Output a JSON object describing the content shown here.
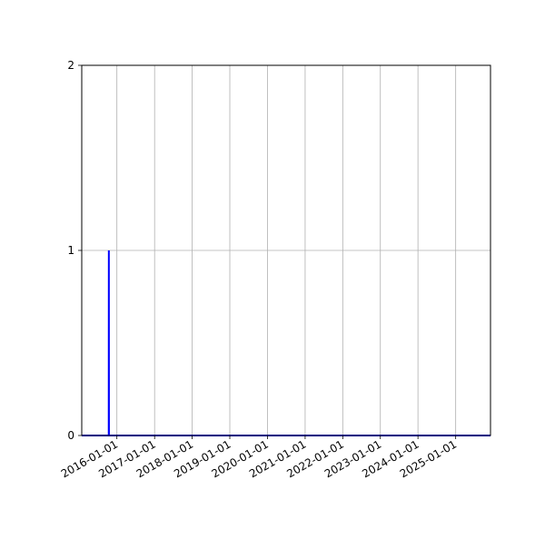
{
  "chart_data": {
    "type": "line",
    "title": "",
    "xlabel": "",
    "ylabel": "",
    "x_type": "date",
    "xlim": [
      "2015-01-25",
      "2025-12-05"
    ],
    "ylim": [
      0,
      2
    ],
    "grid": true,
    "x_ticks": [
      "2016-01-01",
      "2017-01-01",
      "2018-01-01",
      "2019-01-01",
      "2020-01-01",
      "2021-01-01",
      "2022-01-01",
      "2023-01-01",
      "2024-01-01",
      "2025-01-01"
    ],
    "y_ticks": [
      "0",
      "1",
      "2"
    ],
    "series": [
      {
        "color": "#0000ff",
        "points": [
          [
            "2015-01-25",
            0
          ],
          [
            "2015-10-14",
            0
          ],
          [
            "2015-10-15",
            1
          ],
          [
            "2015-10-16",
            0
          ],
          [
            "2025-12-05",
            0
          ]
        ]
      }
    ]
  }
}
